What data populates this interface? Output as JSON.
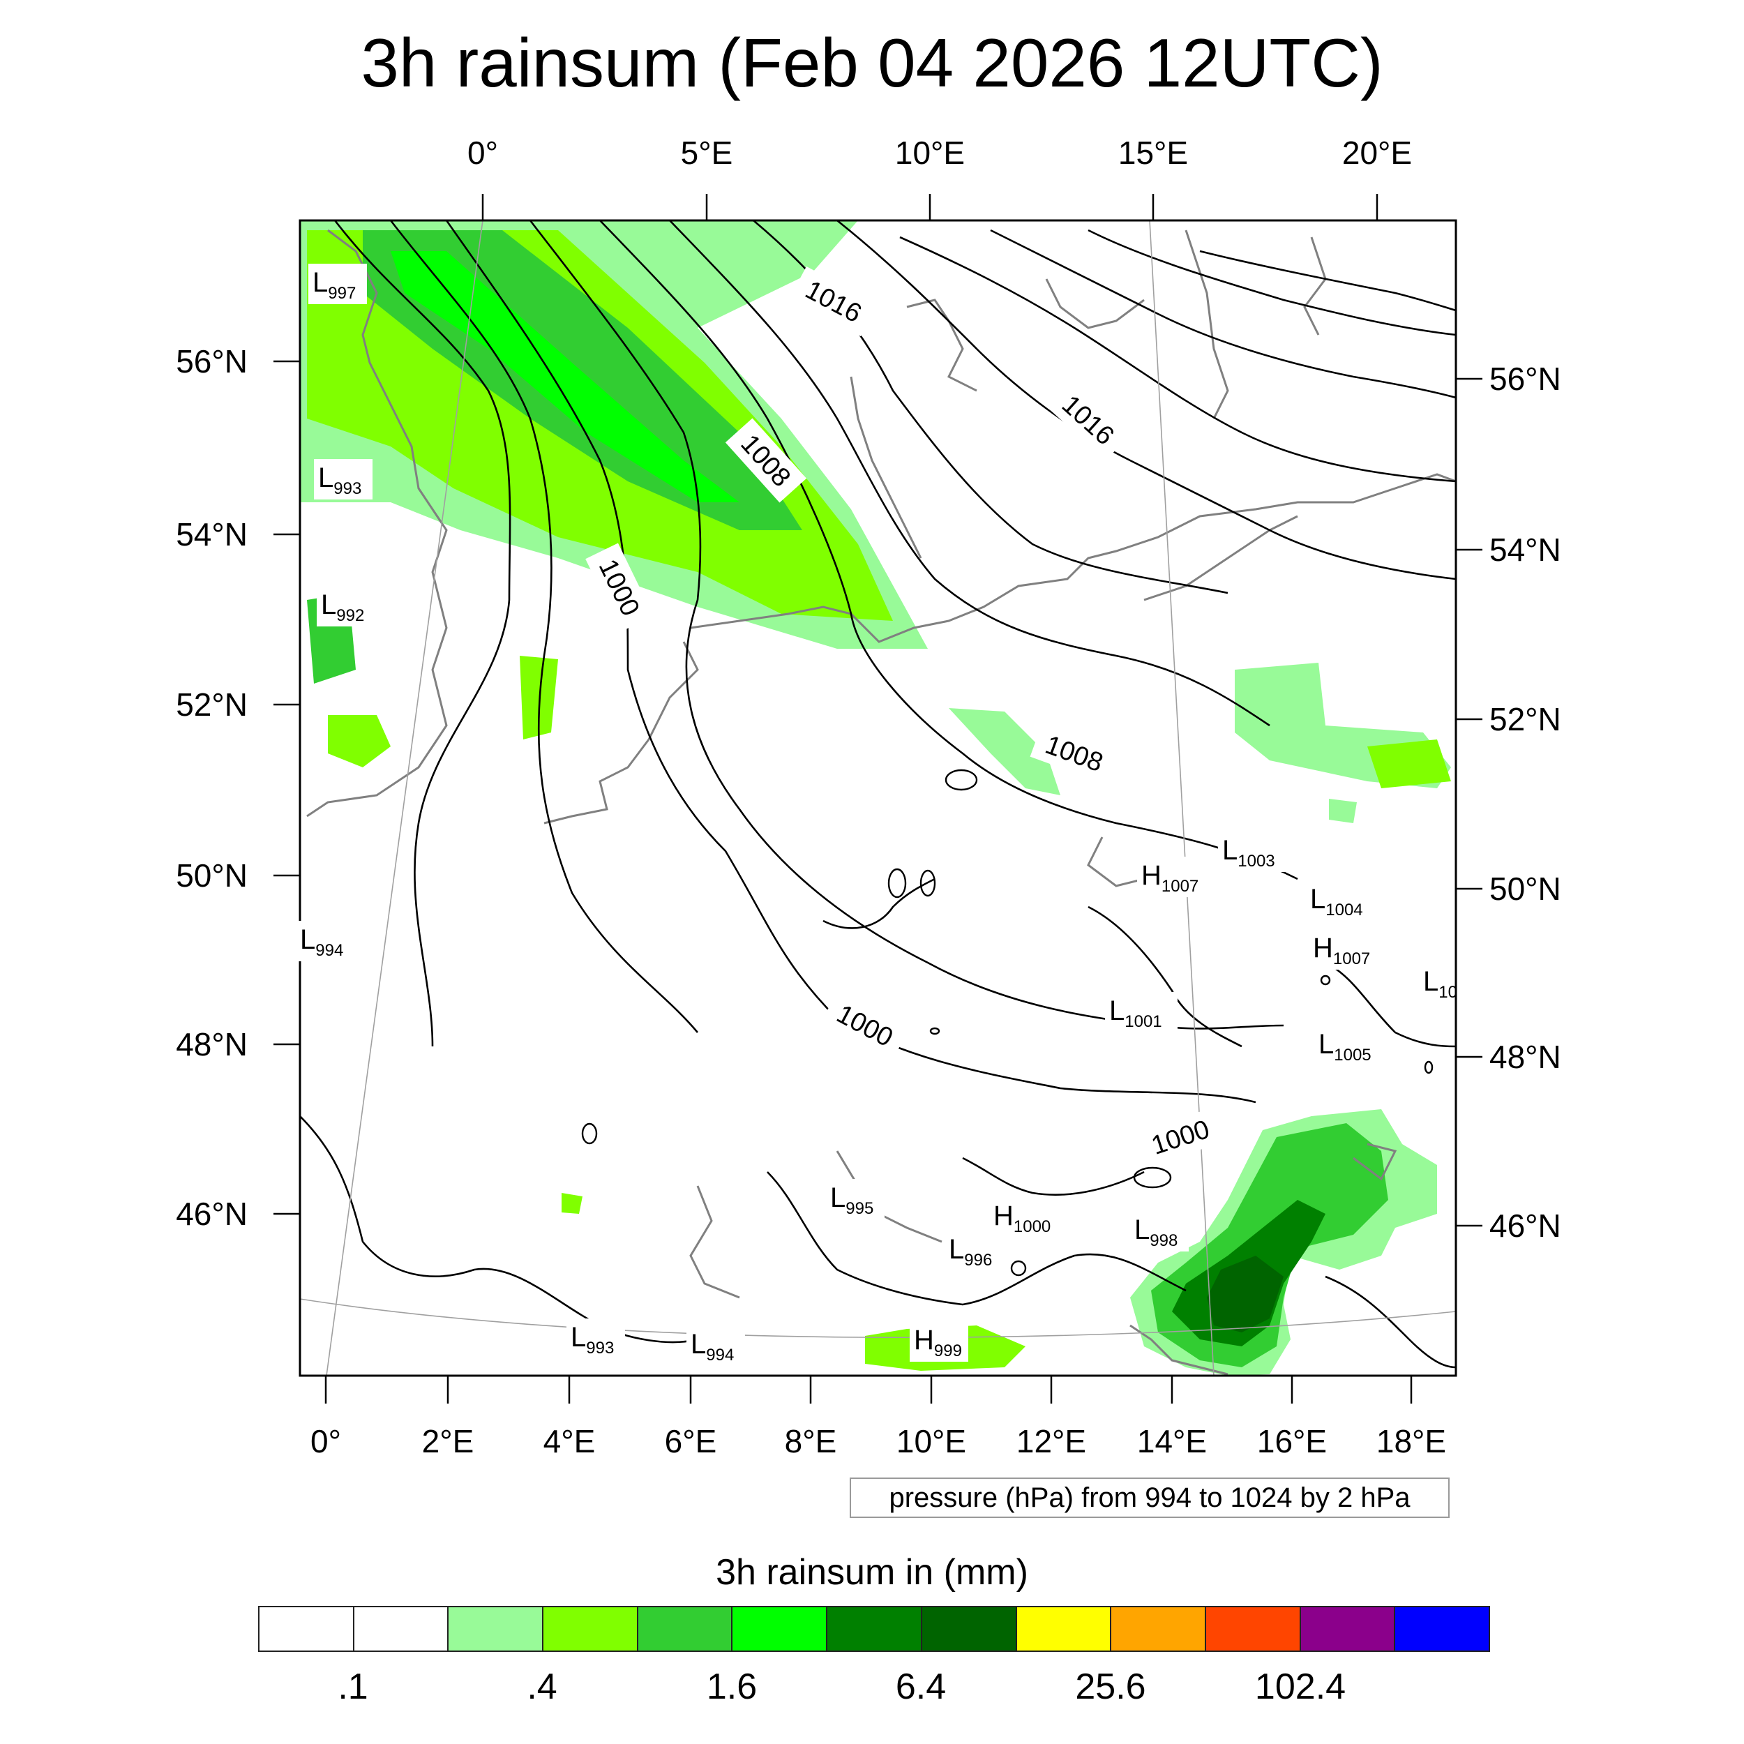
{
  "title": "3h rainsum (Feb 04 2026 12UTC)",
  "top_lon_labels": [
    "0°",
    "5°E",
    "10°E",
    "15°E",
    "20°E"
  ],
  "bottom_lon_labels": [
    "0°",
    "2°E",
    "4°E",
    "6°E",
    "8°E",
    "10°E",
    "12°E",
    "14°E",
    "16°E",
    "18°E"
  ],
  "left_lat_labels": [
    "56°N",
    "54°N",
    "52°N",
    "50°N",
    "48°N",
    "46°N"
  ],
  "right_lat_labels": [
    "56°N",
    "54°N",
    "52°N",
    "50°N",
    "48°N",
    "46°N"
  ],
  "isobar_labels": [
    "1016",
    "1016",
    "1008",
    "1008",
    "1000",
    "1000",
    "1000"
  ],
  "pressure_systems": [
    {
      "letter": "L",
      "value": "997"
    },
    {
      "letter": "L",
      "value": "993"
    },
    {
      "letter": "L",
      "value": "992"
    },
    {
      "letter": "L",
      "value": "994"
    },
    {
      "letter": "H",
      "value": "1007"
    },
    {
      "letter": "L",
      "value": "1003"
    },
    {
      "letter": "L",
      "value": "1004"
    },
    {
      "letter": "H",
      "value": "1007"
    },
    {
      "letter": "L",
      "value": "10"
    },
    {
      "letter": "L",
      "value": "1001"
    },
    {
      "letter": "L",
      "value": "1005"
    },
    {
      "letter": "L",
      "value": "995"
    },
    {
      "letter": "H",
      "value": "1000"
    },
    {
      "letter": "L",
      "value": "996"
    },
    {
      "letter": "L",
      "value": "998"
    },
    {
      "letter": "L",
      "value": "993"
    },
    {
      "letter": "L",
      "value": "994"
    },
    {
      "letter": "H",
      "value": "999"
    }
  ],
  "pressure_note": "pressure (hPa) from 994 to 1024 by 2 hPa",
  "colorbar": {
    "title": "3h rainsum in (mm)",
    "colors": [
      "#ffffff",
      "#ffffff",
      "#98fa98",
      "#80ff00",
      "#32cd32",
      "#00ff00",
      "#008000",
      "#006400",
      "#ffff00",
      "#ffa500",
      "#ff4500",
      "#8b008b",
      "#0000ff"
    ],
    "labels": [
      ".1",
      ".4",
      "1.6",
      "6.4",
      "25.6",
      "102.4"
    ]
  }
}
